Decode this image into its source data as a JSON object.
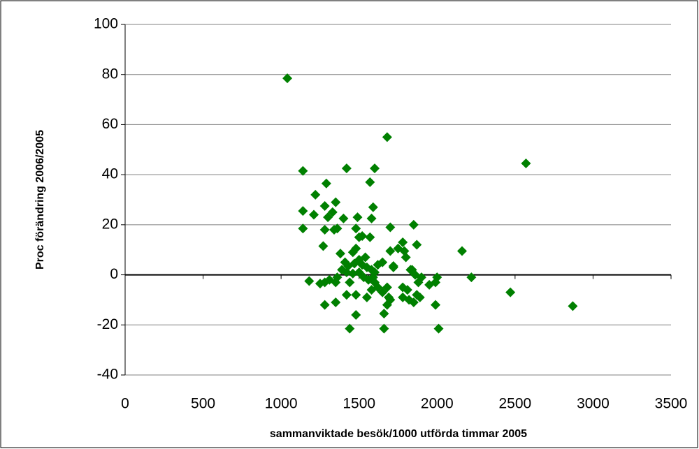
{
  "chart_data": {
    "type": "scatter",
    "xlabel": "sammanviktade besök/1000 utförda timmar 2005",
    "ylabel": "Proc förändring 2006/2005",
    "xlim": [
      0,
      3500
    ],
    "xticks": [
      0,
      500,
      1000,
      1500,
      2000,
      2500,
      3000,
      3500
    ],
    "ylim": [
      -40,
      100
    ],
    "yticks": [
      -40,
      -20,
      0,
      20,
      40,
      60,
      80,
      100
    ],
    "grid": true,
    "series": [
      {
        "color": "#008000",
        "x": [
          1040,
          1680,
          2570,
          1140,
          1420,
          1600,
          1570,
          1290,
          1220,
          1140,
          1210,
          1280,
          1300,
          1330,
          1350,
          1400,
          1490,
          1590,
          1580,
          1140,
          1280,
          1340,
          1360,
          1480,
          1700,
          1850,
          1520,
          1570,
          1500,
          1780,
          1870,
          1270,
          1480,
          1700,
          1750,
          1790,
          2160,
          1380,
          1460,
          1540,
          1620,
          1650,
          1720,
          1800,
          1840,
          1410,
          1430,
          1470,
          1500,
          1520,
          1550,
          1580,
          1600,
          1390,
          1420,
          1460,
          1500,
          1530,
          1560,
          1590,
          1360,
          1310,
          1280,
          1250,
          1180,
          1350,
          1440,
          1480,
          1420,
          1550,
          1580,
          1620,
          1650,
          1680,
          1690,
          1680,
          1700,
          1780,
          1810,
          1780,
          1820,
          1850,
          1870,
          1890,
          1860,
          1880,
          1900,
          1950,
          1990,
          2000,
          1990,
          2010,
          2220,
          2470,
          2870,
          1280,
          1350,
          1480,
          1660,
          1440,
          1660,
          1830,
          1720,
          1600
        ],
        "values": [
          78.5,
          55,
          44.5,
          41.5,
          42.5,
          42.5,
          37,
          36.5,
          32,
          25.5,
          24,
          27.5,
          23,
          25,
          29,
          22.5,
          23,
          27,
          22.5,
          18.5,
          18,
          18,
          18.5,
          18.5,
          19,
          20,
          15.5,
          15,
          15,
          13,
          12,
          11.5,
          10.5,
          9.5,
          10.5,
          9.5,
          9.5,
          8.5,
          9,
          7,
          4,
          5,
          3.5,
          7,
          2,
          5,
          3.5,
          4.5,
          6,
          4,
          3,
          2,
          1,
          2,
          1,
          0.5,
          1,
          -1,
          -2,
          -1,
          -1,
          -2,
          -3,
          -3.5,
          -2.5,
          -3,
          -3,
          -8,
          -8,
          -9,
          -6,
          -5,
          -7,
          -5,
          -9,
          -12,
          -10,
          -5,
          -6,
          -9,
          -10,
          -11,
          -8,
          -9,
          0,
          -3,
          -1,
          -4,
          -3,
          -1,
          -12,
          -21.5,
          -1,
          -7,
          -12.5,
          -12,
          -11,
          -16,
          -15.5,
          -21.5,
          -21.5,
          2,
          3,
          -3
        ]
      }
    ]
  }
}
